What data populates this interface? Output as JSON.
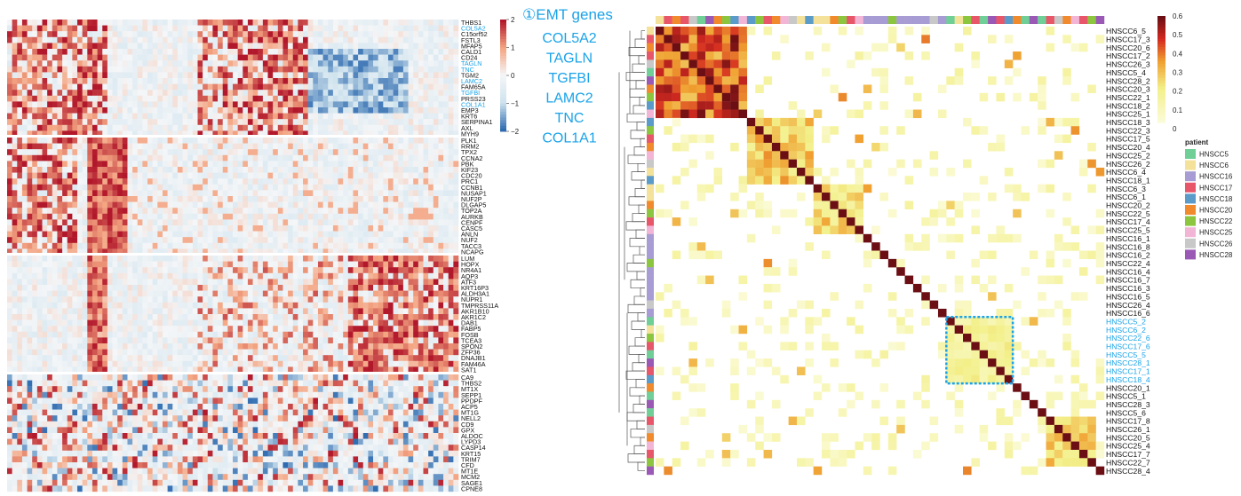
{
  "colors": {
    "heat_low": "#2f6bb0",
    "heat_mid_low": "#cfe3ee",
    "heat_mid": "#f4f6f8",
    "heat_high": "#b2182b",
    "corr_low": "#ffffff",
    "corr_mid": "#f3f08a",
    "corr_high": "#6b0f14",
    "highlight": "#1aa3e8"
  },
  "chart_data": [
    {
      "type": "heatmap",
      "title": "",
      "colorbar": {
        "ticks": [
          "2",
          "1",
          "0",
          "−1",
          "−2"
        ],
        "range": [
          -2,
          2
        ]
      },
      "annotation": {
        "title": "①EMT genes",
        "genes": [
          "COL5A2",
          "TAGLN",
          "TGFBI",
          "LAMC2",
          "TNC",
          "COL1A1"
        ]
      },
      "row_groups": [
        {
          "genes": [
            "THBS1",
            "COL5A2",
            "C15orf52",
            "FSTL3",
            "MFAP5",
            "CALD1",
            "CD24",
            "TAGLN",
            "TNC",
            "TGM2",
            "LAMC2",
            "FAM65A",
            "TGFBI",
            "PRSS23",
            "COL1A1",
            "EMP3",
            "KRT6",
            "SERPINA1",
            "AXL",
            "MYH9"
          ],
          "highlighted": [
            "COL5A2",
            "TAGLN",
            "TNC",
            "LAMC2",
            "TGFBI",
            "COL1A1"
          ]
        },
        {
          "genes": [
            "PLK1",
            "RRM2",
            "TPX2",
            "CCNA2",
            "PBK",
            "KIF23",
            "CDC20",
            "PRC1",
            "CCNB1",
            "NUSAP1",
            "NUF2P",
            "DLGAP5",
            "TOP2A",
            "AURKB",
            "CENPF",
            "CASC5",
            "ANLN",
            "NUF2",
            "TACC3",
            "NCAPG"
          ],
          "highlighted": []
        },
        {
          "genes": [
            "LUM",
            "HOPX",
            "NR4A1",
            "AQP3",
            "ATF3",
            "KRT16P3",
            "ALDH3A1",
            "NUPR1",
            "TMPRSS11A",
            "AKR1B10",
            "AKR1C2",
            "DAB1",
            "FABP5",
            "FOSB",
            "TCEA3",
            "SPON2",
            "ZFP36",
            "DNAJB1",
            "FAM46A",
            "SAT1"
          ],
          "highlighted": []
        },
        {
          "genes": [
            "CA9",
            "THBS2",
            "MT1X",
            "SEPP1",
            "PPDPF",
            "ACP5",
            "MT1G",
            "NELL2",
            "CD9",
            "GPX",
            "ALDOC",
            "LYPD3",
            "CASP14",
            "KRT15",
            "TRIM7",
            "CFD",
            "MT1E",
            "MCM2",
            "SAGE1",
            "CPNE8"
          ],
          "highlighted": []
        }
      ]
    },
    {
      "type": "heatmap",
      "title": "",
      "colorbar": {
        "ticks": [
          "0.6",
          "0.5",
          "0.4",
          "0.3",
          "0.2",
          "0.1",
          "0"
        ],
        "range": [
          0,
          0.6
        ]
      },
      "legend": {
        "title": "patient",
        "entries": [
          {
            "name": "HNSCC5",
            "color": "#6fcf97"
          },
          {
            "name": "HNSCC6",
            "color": "#f4e19a"
          },
          {
            "name": "HNSCC16",
            "color": "#a79cd3"
          },
          {
            "name": "HNSCC17",
            "color": "#e8566a"
          },
          {
            "name": "HNSCC18",
            "color": "#5a9bc9"
          },
          {
            "name": "HNSCC20",
            "color": "#f08a2c"
          },
          {
            "name": "HNSCC22",
            "color": "#8cc63f"
          },
          {
            "name": "HNSCC25",
            "color": "#f3b5d6"
          },
          {
            "name": "HNSCC26",
            "color": "#c8c8c8"
          },
          {
            "name": "HNSCC28",
            "color": "#9b59b6"
          }
        ]
      },
      "programs": [
        "HNSCC6_5",
        "HNSCC17_3",
        "HNSCC20_6",
        "HNSCC17_2",
        "HNSCC26_3",
        "HNSCC5_4",
        "HNSCC28_2",
        "HNSCC20_3",
        "HNSCC22_1",
        "HNSCC18_2",
        "HNSCC25_1",
        "HNSCC18_3",
        "HNSCC22_3",
        "HNSCC17_5",
        "HNSCC20_4",
        "HNSCC25_2",
        "HNSCC26_2",
        "HNSCC6_4",
        "HNSCC18_1",
        "HNSCC6_3",
        "HNSCC6_1",
        "HNSCC20_2",
        "HNSCC22_5",
        "HNSCC17_4",
        "HNSCC25_5",
        "HNSCC16_1",
        "HNSCC16_8",
        "HNSCC16_2",
        "HNSCC22_4",
        "HNSCC16_4",
        "HNSCC16_7",
        "HNSCC16_3",
        "HNSCC16_5",
        "HNSCC26_4",
        "HNSCC16_6",
        "HNSCC5_2",
        "HNSCC6_2",
        "HNSCC22_6",
        "HNSCC17_6",
        "HNSCC5_5",
        "HNSCC28_1",
        "HNSCC17_1",
        "HNSCC18_4",
        "HNSCC20_1",
        "HNSCC5_1",
        "HNSCC28_3",
        "HNSCC5_6",
        "HNSCC17_8",
        "HNSCC26_1",
        "HNSCC20_5",
        "HNSCC25_4",
        "HNSCC17_7",
        "HNSCC22_7",
        "HNSCC28_4"
      ],
      "highlighted_programs": [
        "HNSCC5_2",
        "HNSCC6_2",
        "HNSCC22_6",
        "HNSCC17_6",
        "HNSCC5_5",
        "HNSCC28_1",
        "HNSCC17_1",
        "HNSCC18_4"
      ],
      "blocks": [
        {
          "start": 0,
          "end": 10,
          "level": 0.52
        },
        {
          "start": 11,
          "end": 18,
          "level": 0.33
        },
        {
          "start": 19,
          "end": 24,
          "level": 0.28
        },
        {
          "start": 35,
          "end": 42,
          "level": 0.2
        },
        {
          "start": 47,
          "end": 52,
          "level": 0.3
        }
      ]
    }
  ]
}
